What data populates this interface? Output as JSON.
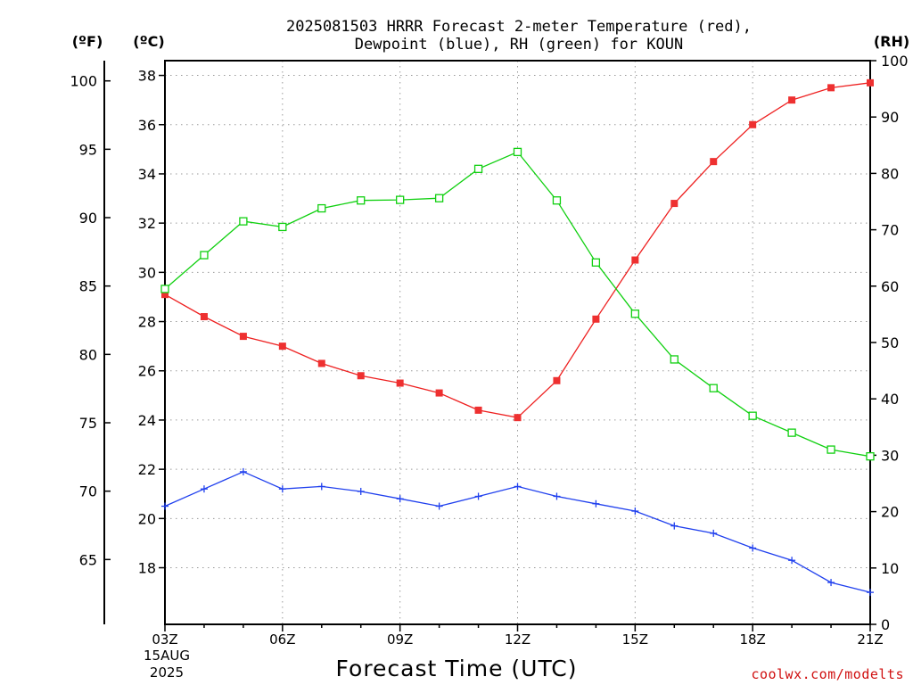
{
  "title_line1": "2025081503 HRRR Forecast 2-meter Temperature (red),",
  "title_line2": "Dewpoint (blue), RH (green) for KOUN",
  "unit_f": "(ºF)",
  "unit_c": "(ºC)",
  "unit_rh": "(RH)",
  "date_line1": "15AUG",
  "date_line2": "2025",
  "credit": "coolwx.com/modelts",
  "colors": {
    "temperature": "#ee2020",
    "temperature_marker": "#ee3030",
    "dewpoint": "#2040ee",
    "rh": "#10d010",
    "credit": "#d01010"
  },
  "chart_data": {
    "type": "line",
    "title": "2025081503 HRRR Forecast 2-meter Temperature (red), Dewpoint (blue), RH (green) for KOUN",
    "xlabel": "Forecast Time (UTC)",
    "x_hours": [
      3,
      4,
      5,
      6,
      7,
      8,
      9,
      10,
      11,
      12,
      13,
      14,
      15,
      16,
      17,
      18,
      19,
      20,
      21
    ],
    "xlim": [
      3,
      21
    ],
    "x_ticks": [
      {
        "hour": 3,
        "label": "03Z"
      },
      {
        "hour": 6,
        "label": "06Z"
      },
      {
        "hour": 9,
        "label": "09Z"
      },
      {
        "hour": 12,
        "label": "12Z"
      },
      {
        "hour": 15,
        "label": "15Z"
      },
      {
        "hour": 18,
        "label": "18Z"
      },
      {
        "hour": 21,
        "label": "21Z"
      }
    ],
    "y_left_c": {
      "ylim": [
        15.7,
        38.6
      ],
      "ticks": [
        18,
        20,
        22,
        24,
        26,
        28,
        30,
        32,
        34,
        36,
        38
      ]
    },
    "y_left_f": {
      "ticks": [
        65,
        70,
        75,
        80,
        85,
        90,
        95,
        100
      ]
    },
    "y_right_rh": {
      "ylim": [
        0,
        100
      ],
      "ticks": [
        0,
        10,
        20,
        30,
        40,
        50,
        60,
        70,
        80,
        90,
        100
      ]
    },
    "grid": true,
    "series": [
      {
        "axis": "celsius",
        "marker": "filled-square",
        "values": [
          29.1,
          28.2,
          27.4,
          27.0,
          26.3,
          25.8,
          25.5,
          25.1,
          24.4,
          24.1,
          25.6,
          28.1,
          30.5,
          32.8,
          34.5,
          36.0,
          37.0,
          37.5,
          37.7
        ]
      },
      {
        "axis": "celsius",
        "marker": "plus",
        "values": [
          20.5,
          21.2,
          21.9,
          21.2,
          21.3,
          21.1,
          20.8,
          20.5,
          20.9,
          21.3,
          20.9,
          20.6,
          20.3,
          19.7,
          19.4,
          18.8,
          18.3,
          17.4,
          17.0
        ]
      },
      {
        "axis": "rh",
        "marker": "open-square",
        "values": [
          59.5,
          65.5,
          71.5,
          70.5,
          73.8,
          75.2,
          75.3,
          75.6,
          80.8,
          83.8,
          75.2,
          64.2,
          55.1,
          47.0,
          41.9,
          37.0,
          34.0,
          31.0,
          29.8
        ]
      }
    ]
  }
}
